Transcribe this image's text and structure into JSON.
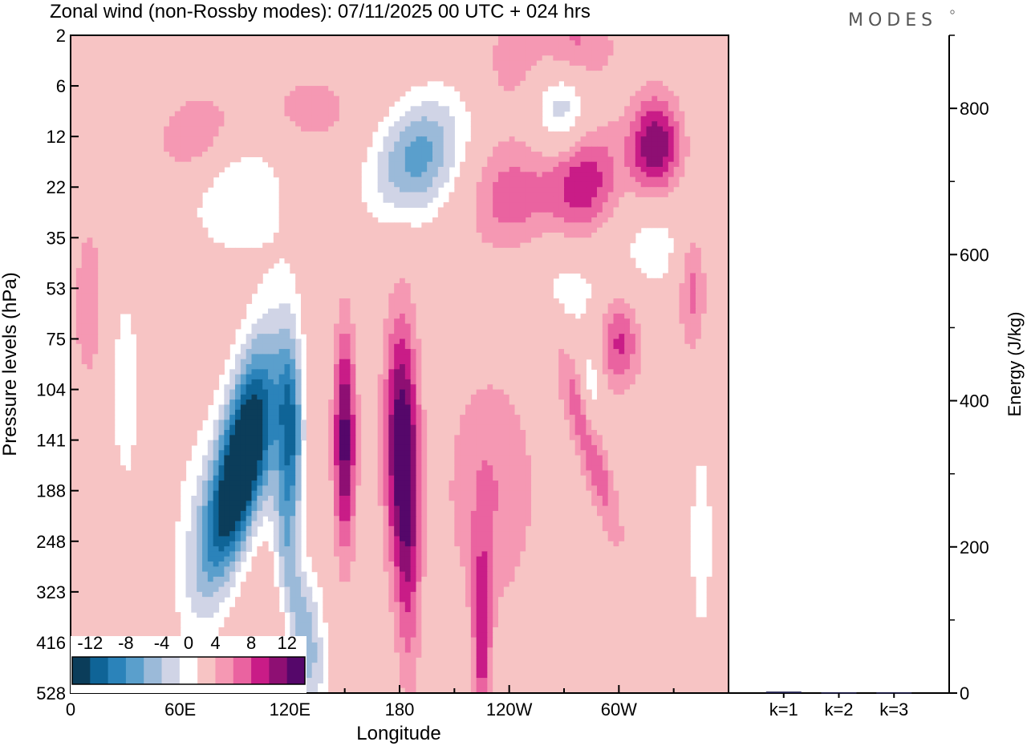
{
  "chart_data": {
    "type": "heatmap",
    "title": "Zonal wind (non-Rossby modes):  07/11/2025  00 UTC  + 024 hrs",
    "brand": "MODES",
    "xlabel": "Longitude",
    "ylabel": "Pressure levels (hPa)",
    "x_ticks": [
      "0",
      "60E",
      "120E",
      "180",
      "120W",
      "60W"
    ],
    "y_ticks": [
      "2",
      "6",
      "12",
      "22",
      "35",
      "53",
      "75",
      "104",
      "141",
      "188",
      "248",
      "323",
      "416",
      "528"
    ],
    "colorbar": {
      "labels": [
        "-12",
        "-8",
        "-4",
        "0",
        "4",
        "8",
        "12"
      ],
      "levels": [
        -14,
        -12,
        -10,
        -8,
        -6,
        -4,
        -2,
        2,
        4,
        6,
        8,
        10,
        12,
        14
      ],
      "colors": [
        "#0b3d5a",
        "#0f6497",
        "#2b83ba",
        "#5a9fcc",
        "#9bbad9",
        "#d0d4e6",
        "#ffffff",
        "#f7c4c4",
        "#f598b3",
        "#ea63a0",
        "#c91c87",
        "#8e0f73",
        "#55076a"
      ]
    },
    "features": [
      {
        "lon": 95,
        "p": 141,
        "value": -14,
        "dlon": 14,
        "dlev": 2.2,
        "tilt": -0.5
      },
      {
        "lon": 92,
        "p": 188,
        "value": -8,
        "dlon": 14,
        "dlev": 1.8,
        "tilt": -0.8
      },
      {
        "lon": 120,
        "p": 141,
        "value": -12,
        "dlon": 7,
        "dlev": 2.0,
        "tilt": 0
      },
      {
        "lon": 122,
        "p": 323,
        "value": -5,
        "dlon": 8,
        "dlev": 2.2,
        "tilt": 0.5
      },
      {
        "lon": 132,
        "p": 416,
        "value": -4,
        "dlon": 9,
        "dlev": 1.5,
        "tilt": 0
      },
      {
        "lon": 70,
        "p": 248,
        "value": -3,
        "dlon": 16,
        "dlev": 2.5,
        "tilt": 0
      },
      {
        "lon": 150,
        "p": 141,
        "value": 11,
        "dlon": 6,
        "dlev": 2.2,
        "tilt": 0
      },
      {
        "lon": 180,
        "p": 141,
        "value": 10,
        "dlon": 9,
        "dlev": 2.5,
        "tilt": 0
      },
      {
        "lon": 185,
        "p": 248,
        "value": 6,
        "dlon": 7,
        "dlev": 3.0,
        "tilt": 0
      },
      {
        "lon": 225,
        "p": 416,
        "value": 7,
        "dlon": 5,
        "dlev": 2.0,
        "tilt": 0
      },
      {
        "lon": 230,
        "p": 188,
        "value": 4,
        "dlon": 26,
        "dlev": 2.5,
        "tilt": 0
      },
      {
        "lon": 283,
        "p": 141,
        "value": 6,
        "dlon": 8,
        "dlev": 2.0,
        "tilt": 0.8
      },
      {
        "lon": 190,
        "p": 16,
        "value": -9,
        "dlon": 25,
        "dlev": 1.2,
        "tilt": -0.6
      },
      {
        "lon": 270,
        "p": 9,
        "value": -7,
        "dlon": 16,
        "dlev": 1.0,
        "tilt": 0
      },
      {
        "lon": 90,
        "p": 22,
        "value": -4,
        "dlon": 30,
        "dlev": 1.4,
        "tilt": 0
      },
      {
        "lon": 280,
        "p": 20,
        "value": 8,
        "dlon": 20,
        "dlev": 1.2,
        "tilt": 0
      },
      {
        "lon": 320,
        "p": 14,
        "value": 10,
        "dlon": 14,
        "dlev": 1.0,
        "tilt": 0
      },
      {
        "lon": 240,
        "p": 25,
        "value": 5,
        "dlon": 24,
        "dlev": 1.3,
        "tilt": 0
      },
      {
        "lon": 70,
        "p": 12,
        "value": 5,
        "dlon": 22,
        "dlev": 0.9,
        "tilt": -0.4
      },
      {
        "lon": 130,
        "p": 9,
        "value": 3,
        "dlon": 30,
        "dlev": 0.9,
        "tilt": 0
      },
      {
        "lon": 300,
        "p": 75,
        "value": 7,
        "dlon": 12,
        "dlev": 1.0,
        "tilt": 0
      },
      {
        "lon": 340,
        "p": 53,
        "value": 5,
        "dlon": 8,
        "dlev": 1.3,
        "tilt": 0
      },
      {
        "lon": 10,
        "p": 60,
        "value": 4,
        "dlon": 8,
        "dlev": 1.6,
        "tilt": 0
      },
      {
        "lon": 270,
        "p": 53,
        "value": -3,
        "dlon": 40,
        "dlev": 1.1,
        "tilt": 0
      },
      {
        "lon": 320,
        "p": 35,
        "value": -3,
        "dlon": 20,
        "dlev": 1.0,
        "tilt": 0
      },
      {
        "lon": 275,
        "p": 3,
        "value": 5,
        "dlon": 22,
        "dlev": 0.9,
        "tilt": 0
      },
      {
        "lon": 240,
        "p": 4,
        "value": 3,
        "dlon": 14,
        "dlev": 0.8,
        "tilt": 0
      },
      {
        "lon": 30,
        "p": 104,
        "value": -3,
        "dlon": 10,
        "dlev": 2.5,
        "tilt": 0
      },
      {
        "lon": 285,
        "p": 104,
        "value": -4,
        "dlon": 6,
        "dlev": 1.0,
        "tilt": 0
      },
      {
        "lon": 345,
        "p": 248,
        "value": -3,
        "dlon": 8,
        "dlev": 2.5,
        "tilt": 0
      }
    ],
    "energy_panel": {
      "ylabel": "Energy (J/kg)",
      "ylim": [
        0,
        900
      ],
      "y_ticks": [
        "0",
        "200",
        "400",
        "600",
        "800"
      ],
      "categories": [
        "k=1",
        "k=2",
        "k=3"
      ],
      "values": [
        2,
        1,
        1
      ],
      "bar_color": "#1f1f4d"
    }
  }
}
